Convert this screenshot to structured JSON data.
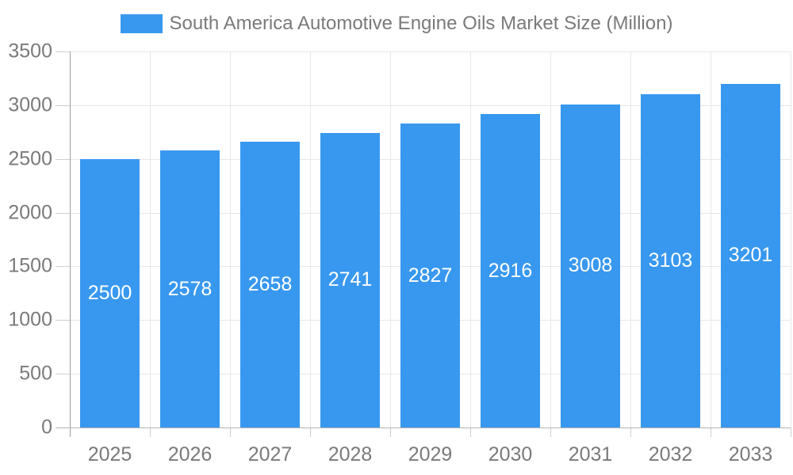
{
  "legend": {
    "items": [
      {
        "label": "South America Automotive Engine Oils Market Size (Million)",
        "color": "#3898ef"
      }
    ]
  },
  "chart_data": {
    "type": "bar",
    "title": "South America Automotive Engine Oils Market Size (Million)",
    "categories": [
      "2025",
      "2026",
      "2027",
      "2028",
      "2029",
      "2030",
      "2031",
      "2032",
      "2033"
    ],
    "values": [
      2500,
      2578,
      2658,
      2741,
      2827,
      2916,
      3008,
      3103,
      3201
    ],
    "bar_value_labels": [
      "2500",
      "2578",
      "2658",
      "2741",
      "2827",
      "2916",
      "3008",
      "3103",
      "3201"
    ],
    "xlabel": "",
    "ylabel": "",
    "ylim": [
      0,
      3500
    ],
    "yticks": [
      0,
      500,
      1000,
      1500,
      2000,
      2500,
      3000,
      3500
    ],
    "grid": "both",
    "legend_position": "top",
    "colors": {
      "bar": "#3898ef",
      "bar_label": "#ffffff",
      "axis_text": "#7a7a7a",
      "legend_text": "#7a7a7a",
      "gridline": "#e7e7e7",
      "tick": "#cfcfcf",
      "y_axis_line": "#9e9e9e",
      "x_axis_line": "#b3b3b3",
      "background": "#ffffff"
    }
  }
}
